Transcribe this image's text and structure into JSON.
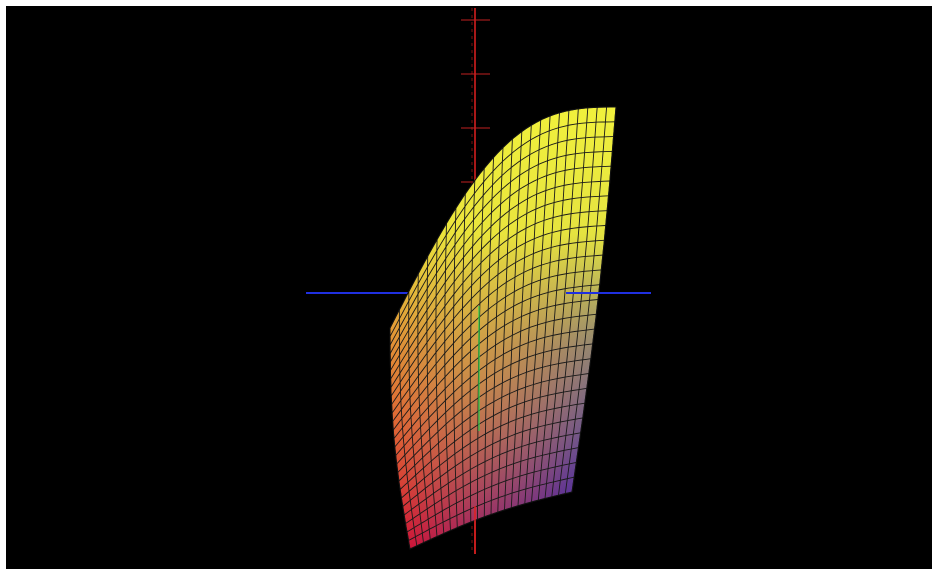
{
  "viewer": {
    "background": "#000000",
    "frame": "#ffffff"
  },
  "surface": {
    "type": "3d-gamut-surface",
    "corner_colors": {
      "bottom_left": "#e01028",
      "top_right": "#f0f03a",
      "bottom_right": "#1010d0",
      "top_left": "#b8d040"
    },
    "grid_divisions": {
      "u": 24,
      "v": 26
    },
    "mesh_line_color": "#1a1a1a"
  },
  "axes": {
    "vertical": {
      "color": "#e02020"
    },
    "horizontal": {
      "color": "#2020d0"
    },
    "depth": {
      "color": "#1fb83a"
    }
  }
}
